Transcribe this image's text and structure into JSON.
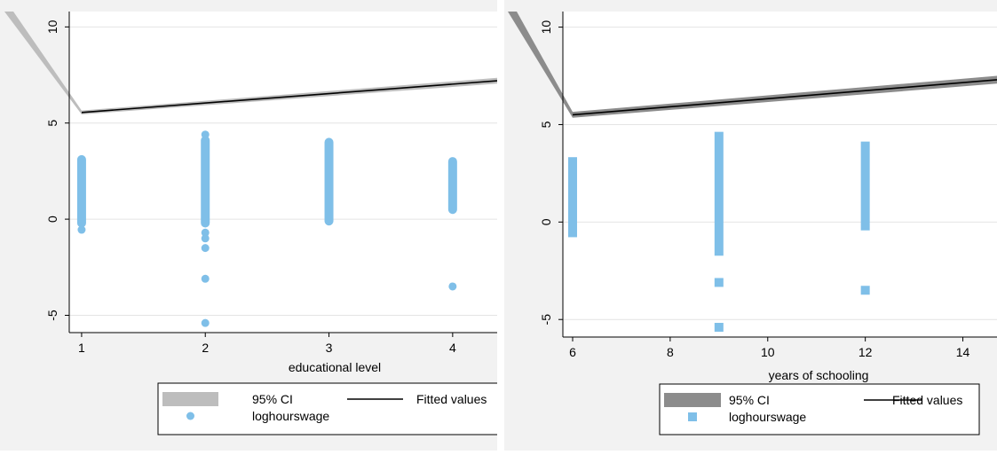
{
  "chart_data": [
    {
      "type": "scatter",
      "xlabel": "educational level",
      "ylabel": "",
      "x_ticks": [
        1,
        2,
        3,
        4
      ],
      "y_ticks": [
        -5,
        0,
        5,
        10
      ],
      "xlim": [
        0.9,
        4.36
      ],
      "ylim": [
        -5.9,
        10.8
      ],
      "grid": true,
      "legend_position": "bottom",
      "legend": [
        "95% CI",
        "Fitted values",
        "loghourswage"
      ],
      "marker": "circle",
      "colors": {
        "scatter": "#7fbfe8",
        "ci": "#bdbdbd",
        "fit": "#000000",
        "plot_bg": "#ffffff",
        "outer_bg": "#f2f2f2"
      },
      "series": [
        {
          "name": "loghourswage",
          "points": [
            {
              "x": 1,
              "range": [
                -0.2,
                3.1
              ]
            },
            {
              "x": 1,
              "y": -0.55
            },
            {
              "x": 2,
              "range": [
                -0.2,
                4.1
              ]
            },
            {
              "x": 2,
              "y": 4.4
            },
            {
              "x": 2,
              "y": -0.7
            },
            {
              "x": 2,
              "y": -1.0
            },
            {
              "x": 2,
              "y": -1.5
            },
            {
              "x": 2,
              "y": -3.1
            },
            {
              "x": 2,
              "y": -5.4
            },
            {
              "x": 3,
              "range": [
                -0.1,
                4.0
              ]
            },
            {
              "x": 4,
              "range": [
                0.5,
                3.0
              ]
            },
            {
              "x": 4,
              "y": -3.5
            }
          ]
        },
        {
          "name": "Fitted values",
          "x": [
            1,
            4.36
          ],
          "y": [
            5.55,
            7.2
          ]
        },
        {
          "name": "95% CI",
          "x": [
            1,
            4.36
          ],
          "upper": [
            5.65,
            7.35
          ],
          "lower": [
            5.45,
            7.05
          ]
        }
      ]
    },
    {
      "type": "scatter",
      "xlabel": "years of schooling",
      "ylabel": "",
      "x_ticks": [
        6,
        8,
        10,
        12,
        14
      ],
      "y_ticks": [
        -5,
        0,
        5,
        10
      ],
      "xlim": [
        5.8,
        14.7
      ],
      "ylim": [
        -5.9,
        10.8
      ],
      "grid": true,
      "legend_position": "bottom",
      "legend": [
        "95% CI",
        "Fitted values",
        "loghourswage"
      ],
      "marker": "square",
      "colors": {
        "scatter": "#7fbfe8",
        "ci": "#8c8c8c",
        "fit": "#000000",
        "plot_bg": "#ffffff",
        "outer_bg": "#f2f2f2"
      },
      "series": [
        {
          "name": "loghourswage",
          "points": [
            {
              "x": 6,
              "range": [
                -0.55,
                3.1
              ]
            },
            {
              "x": 9,
              "range": [
                -1.5,
                4.4
              ]
            },
            {
              "x": 9,
              "y": -3.1
            },
            {
              "x": 9,
              "y": -5.4
            },
            {
              "x": 12,
              "range": [
                -0.2,
                3.9
              ]
            },
            {
              "x": 12,
              "y": -3.5
            }
          ]
        },
        {
          "name": "Fitted values",
          "x": [
            6,
            14.7
          ],
          "y": [
            5.5,
            7.3
          ]
        },
        {
          "name": "95% CI",
          "x": [
            6,
            14.7
          ],
          "upper": [
            5.65,
            7.5
          ],
          "lower": [
            5.35,
            7.1
          ]
        }
      ]
    }
  ]
}
